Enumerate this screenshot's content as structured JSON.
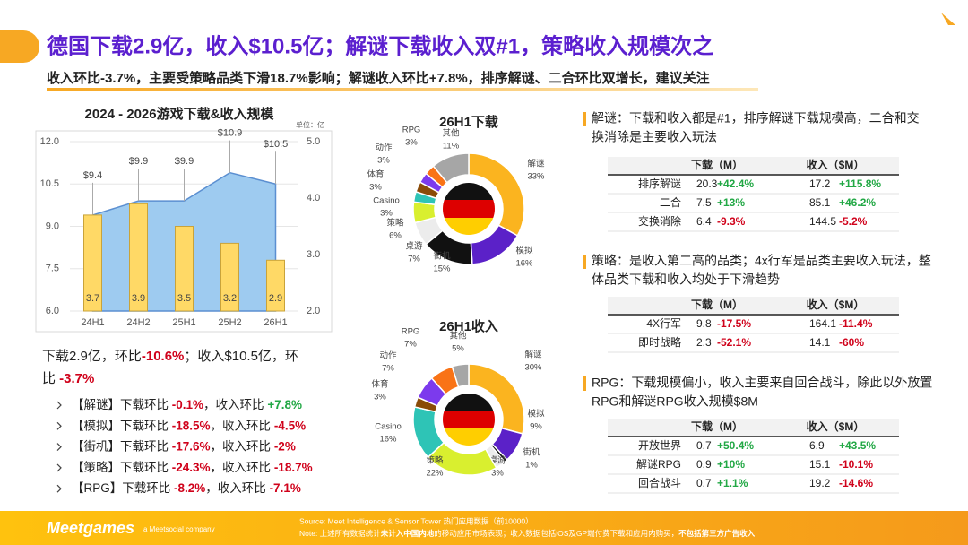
{
  "header": {
    "title": "德国下载2.9亿，收入$10.5亿；解谜下载收入双#1，策略收入规模次之",
    "subtitle": "收入环比-3.7%，主要受策略品类下滑18.7%影响；解谜收入环比+7.8%，排序解谜、二合环比双增长，建议关注"
  },
  "chart_data": [
    {
      "type": "combo",
      "title": "2024 - 2026游戏下载&收入规模",
      "unit": "单位：亿",
      "categories": [
        "24H1",
        "24H2",
        "25H1",
        "25H2",
        "26H1"
      ],
      "series": [
        {
          "type": "area",
          "color": "#9ecbf0",
          "values": [
            9.4,
            9.9,
            9.9,
            10.9,
            10.5
          ],
          "value_labels": [
            "$9.4",
            "$9.9",
            "$9.9",
            "$10.9",
            "$10.5"
          ]
        },
        {
          "type": "bar",
          "axis": "y2",
          "color": "#ffd966",
          "values": [
            3.7,
            3.9,
            3.5,
            3.2,
            2.9
          ]
        }
      ],
      "ylim": [
        6,
        12
      ],
      "yticks": [
        {
          "value": 6,
          "label": "6.0"
        },
        {
          "value": 7.5,
          "label": "7.5"
        },
        {
          "value": 9,
          "label": "9.0"
        },
        {
          "value": 10.5,
          "label": "10.5"
        },
        {
          "value": 12,
          "label": "12.0"
        }
      ],
      "y2lim": [
        2,
        5
      ],
      "y2ticks": [
        {
          "value": 2,
          "label": "2.0"
        },
        {
          "value": 3,
          "label": "3.0"
        },
        {
          "value": 4,
          "label": "4.0"
        },
        {
          "value": 5,
          "label": "5.0"
        }
      ],
      "grid": true
    },
    {
      "type": "donut",
      "title": "26H1下载",
      "categories": [
        "解谜",
        "模拟",
        "街机",
        "桌游",
        "策略",
        "Casino",
        "体育",
        "动作",
        "RPG",
        "其他"
      ],
      "values": [
        33,
        16,
        15,
        7,
        6,
        3,
        3,
        3,
        3,
        11
      ],
      "value_labels": [
        "33%",
        "16%",
        "15%",
        "7%",
        "6%",
        "3%",
        "3%",
        "3%",
        "3%",
        "11%"
      ],
      "colors": [
        "#fbb41f",
        "#5b21c8",
        "#111111",
        "#ececec",
        "#d9ef2f",
        "#2ec4b6",
        "#8a4b08",
        "#7c3aed",
        "#f97316",
        "#a6a6a6"
      ]
    },
    {
      "type": "donut",
      "title": "26H1收入",
      "categories": [
        "解谜",
        "模拟",
        "街机",
        "桌游",
        "策略",
        "Casino",
        "体育",
        "动作",
        "RPG",
        "其他"
      ],
      "values": [
        30,
        9,
        1,
        3,
        22,
        16,
        3,
        7,
        7,
        5
      ],
      "value_labels": [
        "30%",
        "9%",
        "1%",
        "3%",
        "22%",
        "16%",
        "3%",
        "7%",
        "7%",
        "5%"
      ],
      "colors": [
        "#fbb41f",
        "#5b21c8",
        "#111111",
        "#ececec",
        "#d9ef2f",
        "#2ec4b6",
        "#8a4b08",
        "#7c3aed",
        "#f97316",
        "#a6a6a6"
      ]
    }
  ],
  "summary": [
    [
      "下载2.9亿，环比",
      "-10.6%",
      "；收入$10.5亿，环"
    ],
    [
      "比 ",
      "-3.7%"
    ]
  ],
  "bullets": [
    [
      "【解谜】下载环比 ",
      "-0.1%",
      "，收入环比 ",
      "+7.8%"
    ],
    [
      "【模拟】下载环比 ",
      "-18.5%",
      "，收入环比 ",
      "-4.5%"
    ],
    [
      "【街机】下载环比 ",
      "-17.6%",
      "，收入环比 ",
      "-2%"
    ],
    [
      "【策略】下载环比 ",
      "-24.3%",
      "，收入环比 ",
      "-18.7%"
    ],
    [
      "【RPG】下载环比 ",
      "-8.2%",
      "，收入环比 ",
      "-7.1%"
    ]
  ],
  "sections": [
    {
      "text": [
        "解谜：下载和收入都是#1，排序解谜下载规模高，二合和交",
        "换消除是主要收入玩法"
      ],
      "table": {
        "columns": [
          "下载（M）",
          "收入（$M）"
        ],
        "rows": [
          [
            "排序解谜",
            "20.3",
            "+42.4%",
            "17.2",
            "+115.8%"
          ],
          [
            "二合",
            "7.5",
            "+13%",
            "85.1",
            "+46.2%"
          ],
          [
            "交换消除",
            "6.4",
            "-9.3%",
            "144.5",
            "-5.2%"
          ]
        ]
      }
    },
    {
      "text": [
        "策略：是收入第二高的品类；4x行军是品类主要收入玩法，整",
        "体品类下载和收入均处于下滑趋势"
      ],
      "table": {
        "columns": [
          "下载（M）",
          "收入（$M）"
        ],
        "rows": [
          [
            "4X行军",
            "9.8",
            "-17.5%",
            "164.1",
            "-11.4%"
          ],
          [
            "即时战略",
            "2.3",
            "-52.1%",
            "14.1",
            "-60%"
          ]
        ]
      }
    },
    {
      "text": [
        "RPG：下载规模偏小，收入主要来自回合战斗，除此以外放置",
        "RPG和解谜RPG收入规模$8M"
      ],
      "table": {
        "columns": [
          "下载（M）",
          "收入（$M）"
        ],
        "rows": [
          [
            "开放世界",
            "0.7",
            "+50.4%",
            "6.9",
            "+43.5%"
          ],
          [
            "解谜RPG",
            "0.9",
            "+10%",
            "15.1",
            "-10.1%"
          ],
          [
            "回合战斗",
            "0.7",
            "+1.1%",
            "19.2",
            "-14.6%"
          ]
        ]
      }
    }
  ],
  "footer": {
    "logo": "Meetgames",
    "tagline": "a Meetsocial company",
    "source": "Source: Meet Intelligence & Sensor Tower 热门应用数据（前10000）",
    "note": [
      "Note: 上述所有数据统计",
      "未计入中国内地",
      "的移动应用市场表现；收入数据包括iOS及GP端付费下载和应用内购买，",
      "不包括第三方广告收入"
    ]
  }
}
